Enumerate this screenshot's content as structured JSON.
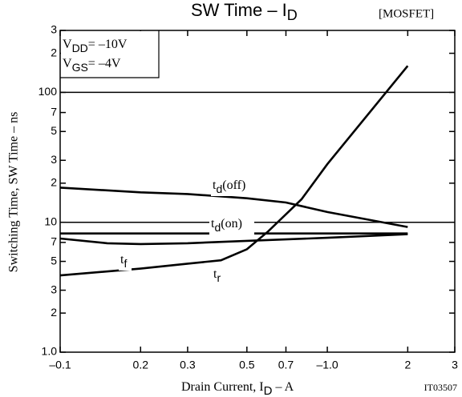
{
  "chart_data": {
    "type": "line",
    "title": {
      "main": "SW Time  –  I",
      "sub": "D"
    },
    "tag": "[MOSFET]",
    "code": "IT03507",
    "x_label": {
      "main": "Drain Current, I",
      "sub": "D",
      "rest": "  –  A"
    },
    "y_label": "Switching Time, SW Time  –  ns",
    "conditions": [
      {
        "main": "V",
        "sub": "DD",
        "rest": "= –10V"
      },
      {
        "main": "V",
        "sub": "GS",
        "rest": "= –4V"
      }
    ],
    "log_x": true,
    "log_y": true,
    "grid": true,
    "xlim": [
      0.1,
      3
    ],
    "ylim": [
      1,
      300
    ],
    "xticks": [
      {
        "value": 0.1,
        "label": "–0.1"
      },
      0.2,
      0.3,
      0.5,
      0.7,
      {
        "value": 1,
        "label": "–1.0"
      },
      2,
      3
    ],
    "yticks": [
      {
        "value": 1,
        "label": "1.0"
      },
      2,
      3,
      5,
      7,
      10,
      {
        "value": 20,
        "label": "2"
      },
      {
        "value": 30,
        "label": "3"
      },
      {
        "value": 50,
        "label": "5"
      },
      {
        "value": 70,
        "label": "7"
      },
      100,
      {
        "value": 200,
        "label": "2"
      },
      {
        "value": 300,
        "label": "3"
      }
    ],
    "series": [
      {
        "label": {
          "main": "t",
          "sub": "d",
          "rest": "(off)"
        },
        "color": "#000000",
        "x": [
          0.1,
          0.2,
          0.3,
          0.5,
          0.7,
          1.0,
          2
        ],
        "values": [
          18.5,
          17,
          16.5,
          15.3,
          14.2,
          12,
          9.2
        ]
      },
      {
        "label": {
          "main": "t",
          "sub": "d",
          "rest": "(on)"
        },
        "color": "#000000",
        "x": [
          0.1,
          2
        ],
        "values": [
          8.2,
          8.2
        ]
      },
      {
        "label": {
          "main": "t",
          "sub": "f"
        },
        "color": "#000000",
        "x": [
          0.1,
          0.15,
          0.2,
          0.3,
          0.5,
          1.0,
          2
        ],
        "values": [
          7.5,
          6.9,
          6.8,
          6.9,
          7.2,
          7.6,
          8.1
        ]
      },
      {
        "label": {
          "main": "t",
          "sub": "r"
        },
        "color": "#000000",
        "x": [
          0.1,
          0.2,
          0.3,
          0.4,
          0.5,
          0.6,
          0.8,
          1.0,
          2
        ],
        "values": [
          3.9,
          4.4,
          4.8,
          5.1,
          6.2,
          8.5,
          15,
          28,
          160
        ]
      }
    ]
  }
}
